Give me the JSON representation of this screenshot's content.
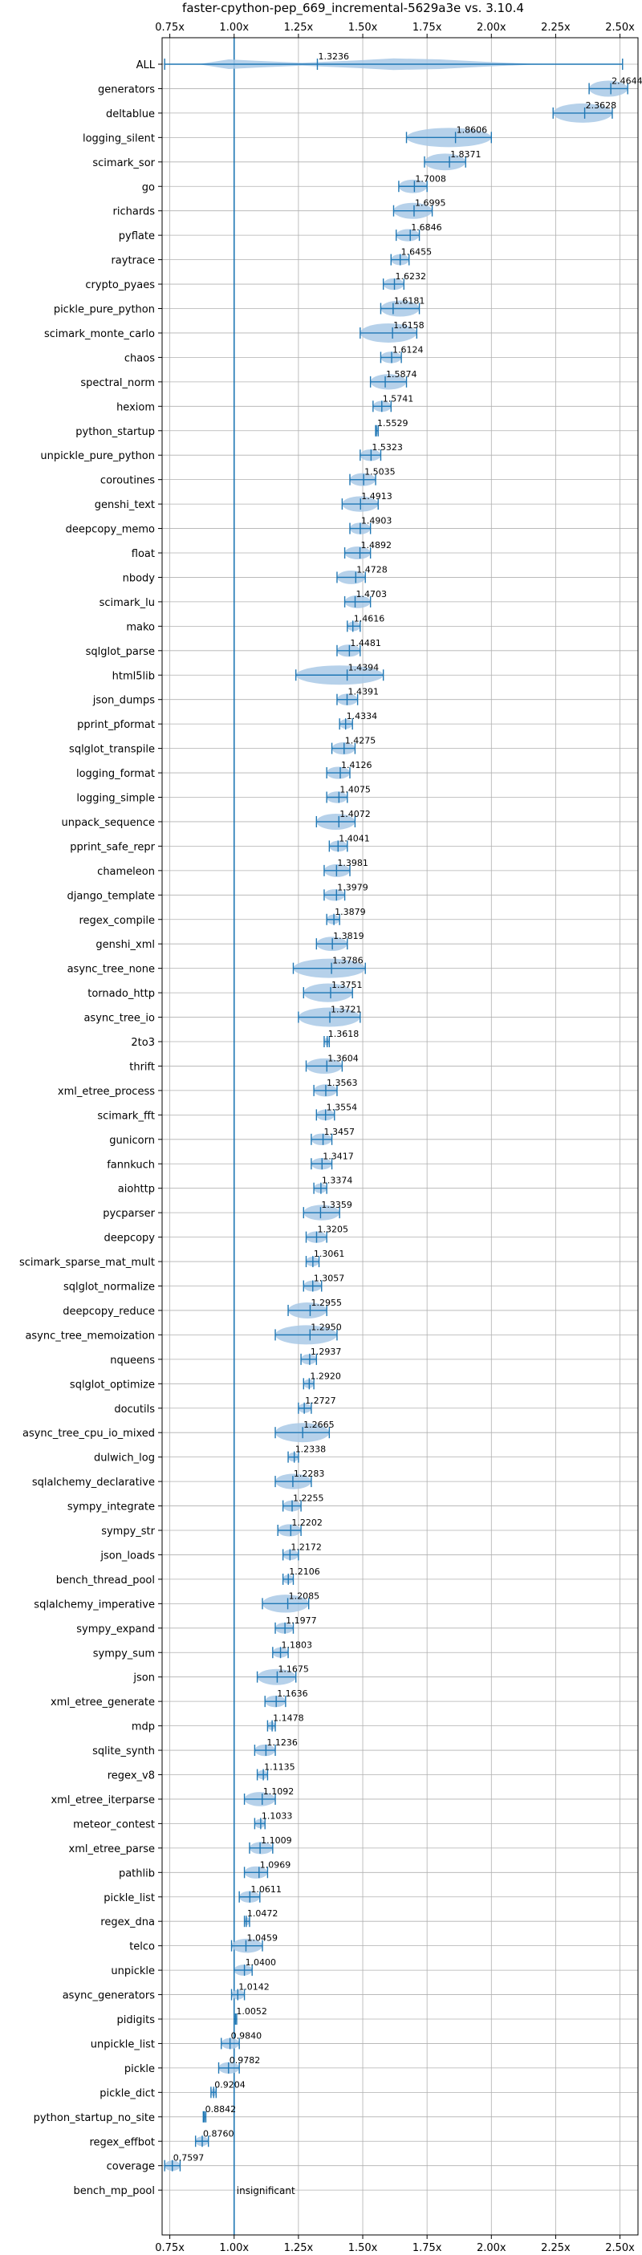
{
  "chart_data": {
    "type": "violin",
    "title": "faster-cpython-pep_669_incremental-5629a3e vs. 3.10.4",
    "xlim": [
      0.72,
      2.57
    ],
    "xticks": [
      "0.75x",
      "1.00x",
      "1.25x",
      "1.50x",
      "1.75x",
      "2.00x",
      "2.25x",
      "2.50x"
    ],
    "xtick_values": [
      0.75,
      1.0,
      1.25,
      1.5,
      1.75,
      2.0,
      2.25,
      2.5
    ],
    "reference_value": 1.0,
    "reference_label": "insignificant",
    "grid": true,
    "colors": {
      "violin": "#a9c9e6",
      "line": "#1f77b4",
      "grid": "#b0b0b0"
    },
    "benchmarks": [
      {
        "name": "ALL",
        "mean": 1.3236,
        "low": 0.73,
        "high": 2.51,
        "label": "1.3236",
        "all": true
      },
      {
        "name": "generators",
        "mean": 2.4644,
        "low": 2.38,
        "high": 2.53,
        "label": "2.4644"
      },
      {
        "name": "deltablue",
        "mean": 2.3628,
        "low": 2.24,
        "high": 2.47,
        "label": "2.3628"
      },
      {
        "name": "logging_silent",
        "mean": 1.8606,
        "low": 1.67,
        "high": 2.0,
        "label": "1.8606"
      },
      {
        "name": "scimark_sor",
        "mean": 1.8371,
        "low": 1.74,
        "high": 1.9,
        "label": "1.8371"
      },
      {
        "name": "go",
        "mean": 1.7008,
        "low": 1.64,
        "high": 1.75,
        "label": "1.7008"
      },
      {
        "name": "richards",
        "mean": 1.6995,
        "low": 1.62,
        "high": 1.77,
        "label": "1.6995"
      },
      {
        "name": "pyflate",
        "mean": 1.6846,
        "low": 1.63,
        "high": 1.72,
        "label": "1.6846"
      },
      {
        "name": "raytrace",
        "mean": 1.6455,
        "low": 1.61,
        "high": 1.68,
        "label": "1.6455"
      },
      {
        "name": "crypto_pyaes",
        "mean": 1.6232,
        "low": 1.58,
        "high": 1.66,
        "label": "1.6232"
      },
      {
        "name": "pickle_pure_python",
        "mean": 1.6181,
        "low": 1.57,
        "high": 1.72,
        "label": "1.6181"
      },
      {
        "name": "scimark_monte_carlo",
        "mean": 1.6158,
        "low": 1.49,
        "high": 1.71,
        "label": "1.6158"
      },
      {
        "name": "chaos",
        "mean": 1.6124,
        "low": 1.57,
        "high": 1.65,
        "label": "1.6124"
      },
      {
        "name": "spectral_norm",
        "mean": 1.5874,
        "low": 1.53,
        "high": 1.67,
        "label": "1.5874"
      },
      {
        "name": "hexiom",
        "mean": 1.5741,
        "low": 1.54,
        "high": 1.61,
        "label": "1.5741"
      },
      {
        "name": "python_startup",
        "mean": 1.5529,
        "low": 1.55,
        "high": 1.56,
        "label": "1.5529"
      },
      {
        "name": "unpickle_pure_python",
        "mean": 1.5323,
        "low": 1.49,
        "high": 1.57,
        "label": "1.5323"
      },
      {
        "name": "coroutines",
        "mean": 1.5035,
        "low": 1.45,
        "high": 1.55,
        "label": "1.5035"
      },
      {
        "name": "genshi_text",
        "mean": 1.4913,
        "low": 1.42,
        "high": 1.56,
        "label": "1.4913"
      },
      {
        "name": "deepcopy_memo",
        "mean": 1.4903,
        "low": 1.45,
        "high": 1.53,
        "label": "1.4903"
      },
      {
        "name": "float",
        "mean": 1.4892,
        "low": 1.43,
        "high": 1.53,
        "label": "1.4892"
      },
      {
        "name": "nbody",
        "mean": 1.4728,
        "low": 1.4,
        "high": 1.51,
        "label": "1.4728"
      },
      {
        "name": "scimark_lu",
        "mean": 1.4703,
        "low": 1.43,
        "high": 1.53,
        "label": "1.4703"
      },
      {
        "name": "mako",
        "mean": 1.4616,
        "low": 1.44,
        "high": 1.49,
        "label": "1.4616"
      },
      {
        "name": "sqlglot_parse",
        "mean": 1.4481,
        "low": 1.4,
        "high": 1.49,
        "label": "1.4481"
      },
      {
        "name": "html5lib",
        "mean": 1.4394,
        "low": 1.24,
        "high": 1.58,
        "label": "1.4394"
      },
      {
        "name": "json_dumps",
        "mean": 1.4391,
        "low": 1.4,
        "high": 1.48,
        "label": "1.4391"
      },
      {
        "name": "pprint_pformat",
        "mean": 1.4334,
        "low": 1.41,
        "high": 1.46,
        "label": "1.4334"
      },
      {
        "name": "sqlglot_transpile",
        "mean": 1.4275,
        "low": 1.38,
        "high": 1.47,
        "label": "1.4275"
      },
      {
        "name": "logging_format",
        "mean": 1.4126,
        "low": 1.36,
        "high": 1.45,
        "label": "1.4126"
      },
      {
        "name": "logging_simple",
        "mean": 1.4075,
        "low": 1.36,
        "high": 1.44,
        "label": "1.4075"
      },
      {
        "name": "unpack_sequence",
        "mean": 1.4072,
        "low": 1.32,
        "high": 1.47,
        "label": "1.4072"
      },
      {
        "name": "pprint_safe_repr",
        "mean": 1.4041,
        "low": 1.37,
        "high": 1.44,
        "label": "1.4041"
      },
      {
        "name": "chameleon",
        "mean": 1.3981,
        "low": 1.35,
        "high": 1.45,
        "label": "1.3981"
      },
      {
        "name": "django_template",
        "mean": 1.3979,
        "low": 1.35,
        "high": 1.43,
        "label": "1.3979"
      },
      {
        "name": "regex_compile",
        "mean": 1.3879,
        "low": 1.36,
        "high": 1.41,
        "label": "1.3879"
      },
      {
        "name": "genshi_xml",
        "mean": 1.3819,
        "low": 1.32,
        "high": 1.44,
        "label": "1.3819"
      },
      {
        "name": "async_tree_none",
        "mean": 1.3786,
        "low": 1.23,
        "high": 1.51,
        "label": "1.3786"
      },
      {
        "name": "tornado_http",
        "mean": 1.3751,
        "low": 1.27,
        "high": 1.46,
        "label": "1.3751"
      },
      {
        "name": "async_tree_io",
        "mean": 1.3721,
        "low": 1.25,
        "high": 1.49,
        "label": "1.3721"
      },
      {
        "name": "2to3",
        "mean": 1.3618,
        "low": 1.35,
        "high": 1.37,
        "label": "1.3618"
      },
      {
        "name": "thrift",
        "mean": 1.3604,
        "low": 1.28,
        "high": 1.42,
        "label": "1.3604"
      },
      {
        "name": "xml_etree_process",
        "mean": 1.3563,
        "low": 1.31,
        "high": 1.4,
        "label": "1.3563"
      },
      {
        "name": "scimark_fft",
        "mean": 1.3554,
        "low": 1.32,
        "high": 1.39,
        "label": "1.3554"
      },
      {
        "name": "gunicorn",
        "mean": 1.3457,
        "low": 1.3,
        "high": 1.38,
        "label": "1.3457"
      },
      {
        "name": "fannkuch",
        "mean": 1.3417,
        "low": 1.3,
        "high": 1.38,
        "label": "1.3417"
      },
      {
        "name": "aiohttp",
        "mean": 1.3374,
        "low": 1.31,
        "high": 1.36,
        "label": "1.3374"
      },
      {
        "name": "pycparser",
        "mean": 1.3359,
        "low": 1.27,
        "high": 1.41,
        "label": "1.3359"
      },
      {
        "name": "deepcopy",
        "mean": 1.3205,
        "low": 1.28,
        "high": 1.36,
        "label": "1.3205"
      },
      {
        "name": "scimark_sparse_mat_mult",
        "mean": 1.3061,
        "low": 1.28,
        "high": 1.33,
        "label": "1.3061"
      },
      {
        "name": "sqlglot_normalize",
        "mean": 1.3057,
        "low": 1.27,
        "high": 1.34,
        "label": "1.3057"
      },
      {
        "name": "deepcopy_reduce",
        "mean": 1.2955,
        "low": 1.21,
        "high": 1.36,
        "label": "1.2955"
      },
      {
        "name": "async_tree_memoization",
        "mean": 1.295,
        "low": 1.16,
        "high": 1.4,
        "label": "1.2950"
      },
      {
        "name": "nqueens",
        "mean": 1.2937,
        "low": 1.26,
        "high": 1.32,
        "label": "1.2937"
      },
      {
        "name": "sqlglot_optimize",
        "mean": 1.292,
        "low": 1.27,
        "high": 1.31,
        "label": "1.2920"
      },
      {
        "name": "docutils",
        "mean": 1.2727,
        "low": 1.25,
        "high": 1.3,
        "label": "1.2727"
      },
      {
        "name": "async_tree_cpu_io_mixed",
        "mean": 1.2665,
        "low": 1.16,
        "high": 1.37,
        "label": "1.2665"
      },
      {
        "name": "dulwich_log",
        "mean": 1.2338,
        "low": 1.21,
        "high": 1.25,
        "label": "1.2338"
      },
      {
        "name": "sqlalchemy_declarative",
        "mean": 1.2283,
        "low": 1.16,
        "high": 1.3,
        "label": "1.2283"
      },
      {
        "name": "sympy_integrate",
        "mean": 1.2255,
        "low": 1.19,
        "high": 1.26,
        "label": "1.2255"
      },
      {
        "name": "sympy_str",
        "mean": 1.2202,
        "low": 1.17,
        "high": 1.26,
        "label": "1.2202"
      },
      {
        "name": "json_loads",
        "mean": 1.2172,
        "low": 1.19,
        "high": 1.25,
        "label": "1.2172"
      },
      {
        "name": "bench_thread_pool",
        "mean": 1.2106,
        "low": 1.19,
        "high": 1.23,
        "label": "1.2106"
      },
      {
        "name": "sqlalchemy_imperative",
        "mean": 1.2085,
        "low": 1.11,
        "high": 1.29,
        "label": "1.2085"
      },
      {
        "name": "sympy_expand",
        "mean": 1.1977,
        "low": 1.16,
        "high": 1.23,
        "label": "1.1977"
      },
      {
        "name": "sympy_sum",
        "mean": 1.1803,
        "low": 1.15,
        "high": 1.21,
        "label": "1.1803"
      },
      {
        "name": "json",
        "mean": 1.1675,
        "low": 1.09,
        "high": 1.24,
        "label": "1.1675"
      },
      {
        "name": "xml_etree_generate",
        "mean": 1.1636,
        "low": 1.12,
        "high": 1.2,
        "label": "1.1636"
      },
      {
        "name": "mdp",
        "mean": 1.1478,
        "low": 1.13,
        "high": 1.16,
        "label": "1.1478"
      },
      {
        "name": "sqlite_synth",
        "mean": 1.1236,
        "low": 1.08,
        "high": 1.16,
        "label": "1.1236"
      },
      {
        "name": "regex_v8",
        "mean": 1.1135,
        "low": 1.09,
        "high": 1.13,
        "label": "1.1135"
      },
      {
        "name": "xml_etree_iterparse",
        "mean": 1.1092,
        "low": 1.04,
        "high": 1.16,
        "label": "1.1092"
      },
      {
        "name": "meteor_contest",
        "mean": 1.1033,
        "low": 1.08,
        "high": 1.12,
        "label": "1.1033"
      },
      {
        "name": "xml_etree_parse",
        "mean": 1.1009,
        "low": 1.06,
        "high": 1.15,
        "label": "1.1009"
      },
      {
        "name": "pathlib",
        "mean": 1.0969,
        "low": 1.04,
        "high": 1.13,
        "label": "1.0969"
      },
      {
        "name": "pickle_list",
        "mean": 1.0611,
        "low": 1.02,
        "high": 1.1,
        "label": "1.0611"
      },
      {
        "name": "regex_dna",
        "mean": 1.0472,
        "low": 1.04,
        "high": 1.06,
        "label": "1.0472"
      },
      {
        "name": "telco",
        "mean": 1.0459,
        "low": 0.99,
        "high": 1.11,
        "label": "1.0459"
      },
      {
        "name": "unpickle",
        "mean": 1.04,
        "low": 1.0,
        "high": 1.07,
        "label": "1.0400"
      },
      {
        "name": "async_generators",
        "mean": 1.0142,
        "low": 0.99,
        "high": 1.04,
        "label": "1.0142"
      },
      {
        "name": "pidigits",
        "mean": 1.0052,
        "low": 1.0,
        "high": 1.01,
        "label": "1.0052"
      },
      {
        "name": "unpickle_list",
        "mean": 0.984,
        "low": 0.95,
        "high": 1.02,
        "label": "0.9840"
      },
      {
        "name": "pickle",
        "mean": 0.9782,
        "low": 0.94,
        "high": 1.02,
        "label": "0.9782"
      },
      {
        "name": "pickle_dict",
        "mean": 0.9204,
        "low": 0.91,
        "high": 0.93,
        "label": "0.9204"
      },
      {
        "name": "python_startup_no_site",
        "mean": 0.8842,
        "low": 0.88,
        "high": 0.89,
        "label": "0.8842"
      },
      {
        "name": "regex_effbot",
        "mean": 0.876,
        "low": 0.85,
        "high": 0.9,
        "label": "0.8760"
      },
      {
        "name": "coverage",
        "mean": 0.7597,
        "low": 0.73,
        "high": 0.79,
        "label": "0.7597"
      },
      {
        "name": "bench_mp_pool",
        "mean": null,
        "low": null,
        "high": null,
        "label": "",
        "note": "insignificant"
      }
    ]
  }
}
